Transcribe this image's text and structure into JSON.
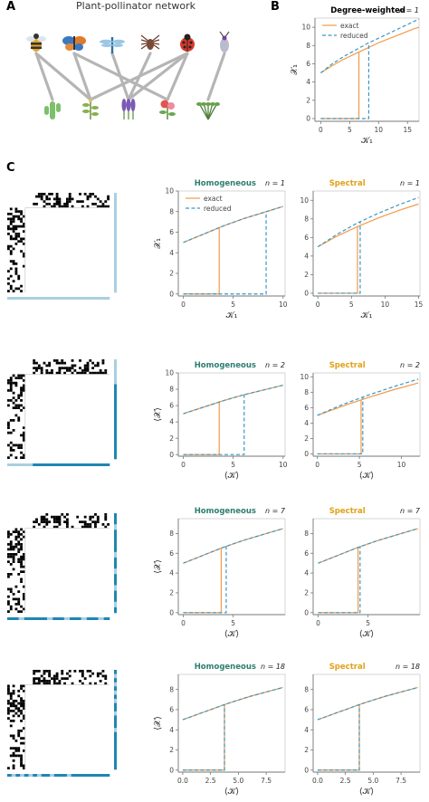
{
  "panels": {
    "a": "A",
    "b": "B",
    "c": "C"
  },
  "network": {
    "title": "Plant-pollinator network",
    "pollinators": [
      "bee-icon",
      "butterfly-icon",
      "dragonfly-icon",
      "spider-icon",
      "ladybug-icon",
      "beetle-icon"
    ],
    "plants": [
      "cactus-icon",
      "herb-icon",
      "lavender-icon",
      "rose-icon",
      "shrub-icon"
    ],
    "edges": [
      [
        0,
        0
      ],
      [
        0,
        1
      ],
      [
        1,
        1
      ],
      [
        1,
        3
      ],
      [
        2,
        2
      ],
      [
        3,
        2
      ],
      [
        4,
        3
      ],
      [
        4,
        1
      ],
      [
        4,
        2
      ],
      [
        5,
        4
      ]
    ]
  },
  "colors": {
    "exact": "#f39a4a",
    "reduced": "#3a98c4",
    "homogeneous": "#2e7d70",
    "spectral": "#e1a118",
    "matrix": "#000000",
    "bar_light": "#a9cfe0",
    "bar_dark": "#1f86b3",
    "bar_gray": "#b8b8b8"
  },
  "chart_data": [
    {
      "id": "b",
      "type": "line",
      "title": "Degree-weighted",
      "n_label": "n = 1",
      "title_color": "#000000",
      "xlabel": "𝒦₁",
      "ylabel": "𝒳₁",
      "xlim": [
        -1,
        17
      ],
      "ylim": [
        -0.3,
        11
      ],
      "xticks": [
        "0",
        "5",
        "10",
        "15"
      ],
      "xtick_values": [
        0,
        5,
        10,
        15
      ],
      "yticks": [
        "0",
        "2",
        "4",
        "6",
        "8",
        "10"
      ],
      "ytick_values": [
        0,
        2,
        4,
        6,
        8,
        10
      ],
      "legend": [
        "exact",
        "reduced"
      ],
      "tipping_exact": 6.6,
      "tipping_reduced": 8.3,
      "series": [
        {
          "name": "exact",
          "upper": {
            "x": [
              0,
              2,
              4,
              6,
              8,
              10,
              12,
              14,
              16,
              17
            ],
            "y": [
              5.0,
              5.8,
              6.5,
              7.1,
              7.7,
              8.3,
              8.8,
              9.3,
              9.8,
              10.0
            ]
          }
        },
        {
          "name": "reduced",
          "upper": {
            "x": [
              0,
              2,
              4,
              6,
              8,
              10,
              12,
              14,
              16,
              17
            ],
            "y": [
              5.0,
              6.0,
              6.8,
              7.5,
              8.2,
              8.8,
              9.4,
              10.0,
              10.6,
              10.9
            ]
          }
        }
      ]
    },
    {
      "id": "c1h",
      "type": "line",
      "title": "Homogeneous",
      "n_label": "n = 1",
      "title_color": "#2e7d70",
      "xlabel": "𝒦₁",
      "ylabel": "𝒳₁",
      "xlim": [
        -0.5,
        10.2
      ],
      "ylim": [
        -0.2,
        10
      ],
      "xticks": [
        "0",
        "5",
        "10"
      ],
      "xtick_values": [
        0,
        5,
        10
      ],
      "yticks": [
        "0",
        "2",
        "4",
        "6",
        "8",
        "10"
      ],
      "ytick_values": [
        0,
        2,
        4,
        6,
        8,
        10
      ],
      "legend": [
        "exact",
        "reduced"
      ],
      "tipping_exact": 3.6,
      "tipping_reduced": 8.3,
      "series": [
        {
          "name": "exact",
          "upper": {
            "x": [
              0,
              2,
              4,
              6,
              8,
              10
            ],
            "y": [
              5.0,
              5.8,
              6.6,
              7.3,
              7.9,
              8.5
            ]
          }
        },
        {
          "name": "reduced",
          "upper": {
            "x": [
              0,
              2,
              4,
              6,
              8,
              10
            ],
            "y": [
              5.0,
              5.8,
              6.6,
              7.3,
              7.9,
              8.5
            ]
          }
        }
      ]
    },
    {
      "id": "c1s",
      "type": "line",
      "title": "Spectral",
      "n_label": "n = 1",
      "title_color": "#e1a118",
      "xlabel": "𝒦₁",
      "ylabel": "",
      "xlim": [
        -0.7,
        15.2
      ],
      "ylim": [
        -0.3,
        11
      ],
      "xticks": [
        "0",
        "5",
        "10",
        "15"
      ],
      "xtick_values": [
        0,
        5,
        10,
        15
      ],
      "yticks": [
        "0",
        "2",
        "4",
        "6",
        "8",
        "10"
      ],
      "ytick_values": [
        0,
        2,
        4,
        6,
        8,
        10
      ],
      "tipping_exact": 5.9,
      "tipping_reduced": 6.3,
      "series": [
        {
          "name": "exact",
          "upper": {
            "x": [
              0,
              3,
              6,
              9,
              12,
              15
            ],
            "y": [
              5.0,
              6.2,
              7.2,
              8.1,
              8.9,
              9.6
            ]
          }
        },
        {
          "name": "reduced",
          "upper": {
            "x": [
              0,
              3,
              6,
              9,
              12,
              15
            ],
            "y": [
              5.0,
              6.4,
              7.6,
              8.6,
              9.5,
              10.3
            ]
          }
        }
      ]
    },
    {
      "id": "c2h",
      "type": "line",
      "title": "Homogeneous",
      "n_label": "n = 2",
      "title_color": "#2e7d70",
      "xlabel": "⟨𝒦⟩",
      "ylabel": "⟨𝒳⟩",
      "xlim": [
        -0.5,
        10.2
      ],
      "ylim": [
        -0.2,
        10
      ],
      "xticks": [
        "0",
        "5",
        "10"
      ],
      "xtick_values": [
        0,
        5,
        10
      ],
      "yticks": [
        "0",
        "2",
        "4",
        "6",
        "8",
        "10"
      ],
      "ytick_values": [
        0,
        2,
        4,
        6,
        8,
        10
      ],
      "tipping_exact": 3.6,
      "tipping_reduced": 6.1,
      "series": [
        {
          "name": "exact",
          "upper": {
            "x": [
              0,
              2,
              4,
              6,
              8,
              10
            ],
            "y": [
              5.0,
              5.8,
              6.6,
              7.3,
              7.9,
              8.5
            ]
          }
        },
        {
          "name": "reduced",
          "upper": {
            "x": [
              0,
              2,
              4,
              6,
              8,
              10
            ],
            "y": [
              5.0,
              5.8,
              6.6,
              7.3,
              7.9,
              8.5
            ]
          }
        }
      ]
    },
    {
      "id": "c2s",
      "type": "line",
      "title": "Spectral",
      "n_label": "n = 2",
      "title_color": "#e1a118",
      "xlabel": "⟨𝒦⟩",
      "ylabel": "",
      "xlim": [
        -0.5,
        12.2
      ],
      "ylim": [
        -0.3,
        10.5
      ],
      "xticks": [
        "0",
        "5",
        "10"
      ],
      "xtick_values": [
        0,
        5,
        10
      ],
      "yticks": [
        "0",
        "2",
        "4",
        "6",
        "8",
        "10"
      ],
      "ytick_values": [
        0,
        2,
        4,
        6,
        8,
        10
      ],
      "tipping_exact": 5.2,
      "tipping_reduced": 5.4,
      "series": [
        {
          "name": "exact",
          "upper": {
            "x": [
              0,
              3,
              6,
              9,
              12
            ],
            "y": [
              5.0,
              6.2,
              7.3,
              8.3,
              9.2
            ]
          }
        },
        {
          "name": "reduced",
          "upper": {
            "x": [
              0,
              3,
              6,
              9,
              12
            ],
            "y": [
              5.0,
              6.4,
              7.6,
              8.7,
              9.7
            ]
          }
        }
      ]
    },
    {
      "id": "c3h",
      "type": "line",
      "title": "Homogeneous",
      "n_label": "n = 7",
      "title_color": "#2e7d70",
      "xlabel": "⟨𝒦⟩",
      "ylabel": "⟨𝒳⟩",
      "xlim": [
        -0.5,
        10.2
      ],
      "ylim": [
        -0.2,
        9.5
      ],
      "xticks": [
        "0",
        "5"
      ],
      "xtick_values": [
        0,
        5
      ],
      "yticks": [
        "0",
        "2",
        "4",
        "6",
        "8"
      ],
      "ytick_values": [
        0,
        2,
        4,
        6,
        8
      ],
      "tipping_exact": 3.8,
      "tipping_reduced": 4.3,
      "series": [
        {
          "name": "exact",
          "upper": {
            "x": [
              0,
              2,
              4,
              6,
              8,
              10
            ],
            "y": [
              5.0,
              5.8,
              6.6,
              7.3,
              7.9,
              8.5
            ]
          }
        },
        {
          "name": "reduced",
          "upper": {
            "x": [
              0,
              2,
              4,
              6,
              8,
              10
            ],
            "y": [
              5.0,
              5.8,
              6.6,
              7.3,
              7.9,
              8.5
            ]
          }
        }
      ]
    },
    {
      "id": "c3s",
      "type": "line",
      "title": "Spectral",
      "n_label": "n = 7",
      "title_color": "#e1a118",
      "xlabel": "⟨𝒦⟩",
      "ylabel": "",
      "xlim": [
        -0.5,
        10.2
      ],
      "ylim": [
        -0.2,
        9.5
      ],
      "xticks": [
        "0",
        "5"
      ],
      "xtick_values": [
        0,
        5
      ],
      "yticks": [
        "0",
        "2",
        "4",
        "6",
        "8"
      ],
      "ytick_values": [
        0,
        2,
        4,
        6,
        8
      ],
      "tipping_exact": 4.0,
      "tipping_reduced": 4.2,
      "series": [
        {
          "name": "exact",
          "upper": {
            "x": [
              0,
              2,
              4,
              6,
              8,
              10
            ],
            "y": [
              5.0,
              5.8,
              6.6,
              7.3,
              7.9,
              8.5
            ]
          }
        },
        {
          "name": "reduced",
          "upper": {
            "x": [
              0,
              2,
              4,
              6,
              8,
              10
            ],
            "y": [
              5.0,
              5.8,
              6.6,
              7.3,
              7.9,
              8.5
            ]
          }
        }
      ]
    },
    {
      "id": "c4h",
      "type": "line",
      "title": "Homogeneous",
      "n_label": "n = 18",
      "title_color": "#2e7d70",
      "xlabel": "⟨𝒦⟩",
      "ylabel": "⟨𝒳⟩",
      "xlim": [
        -0.4,
        9.2
      ],
      "ylim": [
        -0.2,
        9.5
      ],
      "xticks": [
        "0.0",
        "2.5",
        "5.0",
        "7.5"
      ],
      "xtick_values": [
        0,
        2.5,
        5,
        7.5
      ],
      "yticks": [
        "0",
        "2",
        "4",
        "6",
        "8"
      ],
      "ytick_values": [
        0,
        2,
        4,
        6,
        8
      ],
      "tipping_exact": 3.75,
      "tipping_reduced": 3.75,
      "series": [
        {
          "name": "exact",
          "upper": {
            "x": [
              0,
              2,
              4,
              6,
              8,
              9
            ],
            "y": [
              5.0,
              5.8,
              6.6,
              7.3,
              7.9,
              8.2
            ]
          }
        },
        {
          "name": "reduced",
          "upper": {
            "x": [
              0,
              2,
              4,
              6,
              8,
              9
            ],
            "y": [
              5.0,
              5.8,
              6.6,
              7.3,
              7.9,
              8.2
            ]
          }
        }
      ]
    },
    {
      "id": "c4s",
      "type": "line",
      "title": "Spectral",
      "n_label": "n = 18",
      "title_color": "#e1a118",
      "xlabel": "⟨𝒦⟩",
      "ylabel": "",
      "xlim": [
        -0.4,
        9.2
      ],
      "ylim": [
        -0.2,
        9.5
      ],
      "xticks": [
        "0.0",
        "2.5",
        "5.0",
        "7.5"
      ],
      "xtick_values": [
        0,
        2.5,
        5,
        7.5
      ],
      "yticks": [
        "0",
        "2",
        "4",
        "6",
        "8"
      ],
      "ytick_values": [
        0,
        2,
        4,
        6,
        8
      ],
      "tipping_exact": 3.75,
      "tipping_reduced": 3.75,
      "series": [
        {
          "name": "exact",
          "upper": {
            "x": [
              0,
              2,
              4,
              6,
              8,
              9
            ],
            "y": [
              5.0,
              5.8,
              6.6,
              7.3,
              7.9,
              8.2
            ]
          }
        },
        {
          "name": "reduced",
          "upper": {
            "x": [
              0,
              2,
              4,
              6,
              8,
              9
            ],
            "y": [
              5.0,
              5.8,
              6.6,
              7.3,
              7.9,
              8.2
            ]
          }
        }
      ]
    }
  ]
}
